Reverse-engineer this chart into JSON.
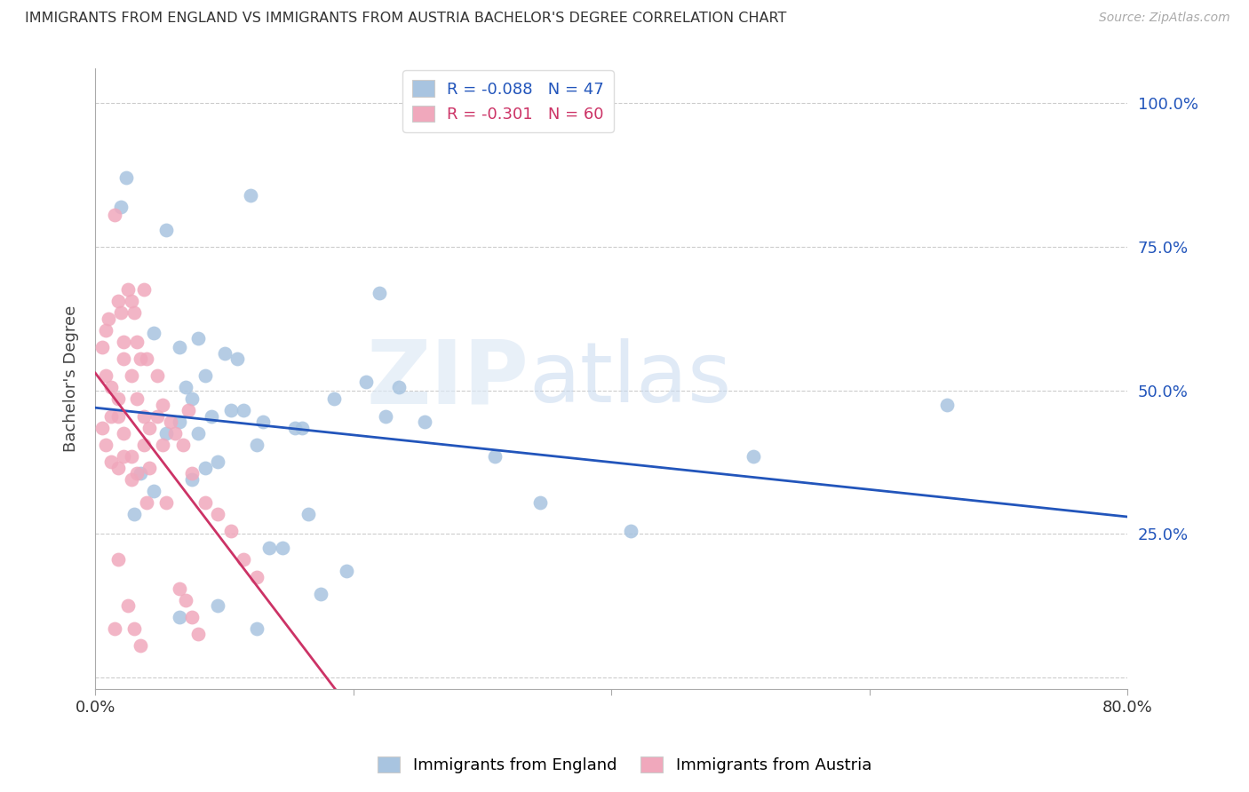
{
  "title": "IMMIGRANTS FROM ENGLAND VS IMMIGRANTS FROM AUSTRIA BACHELOR'S DEGREE CORRELATION CHART",
  "source": "Source: ZipAtlas.com",
  "ylabel": "Bachelor's Degree",
  "ytick_values": [
    0.0,
    0.25,
    0.5,
    0.75,
    1.0
  ],
  "xlim": [
    0.0,
    0.8
  ],
  "ylim": [
    -0.02,
    1.06
  ],
  "R_england": -0.088,
  "N_england": 47,
  "R_austria": -0.301,
  "N_austria": 60,
  "england_color": "#a8c4e0",
  "austria_color": "#f0a8bc",
  "england_line_color": "#2255bb",
  "austria_line_color": "#cc3366",
  "bg_color": "#ffffff",
  "watermark_zip": "ZIP",
  "watermark_atlas": "atlas",
  "england_x": [
    0.024,
    0.055,
    0.12,
    0.22,
    0.02,
    0.08,
    0.045,
    0.065,
    0.1,
    0.085,
    0.11,
    0.075,
    0.13,
    0.09,
    0.07,
    0.16,
    0.08,
    0.21,
    0.31,
    0.095,
    0.125,
    0.155,
    0.115,
    0.185,
    0.035,
    0.045,
    0.055,
    0.065,
    0.03,
    0.105,
    0.075,
    0.085,
    0.145,
    0.255,
    0.225,
    0.165,
    0.135,
    0.195,
    0.51,
    0.66,
    0.345,
    0.415,
    0.125,
    0.095,
    0.065,
    0.175,
    0.235
  ],
  "england_y": [
    0.87,
    0.78,
    0.84,
    0.67,
    0.82,
    0.59,
    0.6,
    0.575,
    0.565,
    0.525,
    0.555,
    0.485,
    0.445,
    0.455,
    0.505,
    0.435,
    0.425,
    0.515,
    0.385,
    0.375,
    0.405,
    0.435,
    0.465,
    0.485,
    0.355,
    0.325,
    0.425,
    0.445,
    0.285,
    0.465,
    0.345,
    0.365,
    0.225,
    0.445,
    0.455,
    0.285,
    0.225,
    0.185,
    0.385,
    0.475,
    0.305,
    0.255,
    0.085,
    0.125,
    0.105,
    0.145,
    0.505
  ],
  "austria_x": [
    0.005,
    0.008,
    0.01,
    0.012,
    0.015,
    0.018,
    0.02,
    0.022,
    0.025,
    0.028,
    0.03,
    0.032,
    0.035,
    0.038,
    0.04,
    0.008,
    0.012,
    0.018,
    0.022,
    0.028,
    0.032,
    0.038,
    0.042,
    0.048,
    0.052,
    0.058,
    0.062,
    0.068,
    0.072,
    0.005,
    0.008,
    0.012,
    0.018,
    0.022,
    0.028,
    0.032,
    0.038,
    0.042,
    0.048,
    0.052,
    0.018,
    0.022,
    0.028,
    0.055,
    0.075,
    0.085,
    0.095,
    0.105,
    0.115,
    0.125,
    0.065,
    0.07,
    0.075,
    0.08,
    0.03,
    0.035,
    0.04,
    0.018,
    0.025,
    0.015
  ],
  "austria_y": [
    0.575,
    0.605,
    0.625,
    0.455,
    0.805,
    0.655,
    0.635,
    0.585,
    0.675,
    0.655,
    0.635,
    0.585,
    0.555,
    0.675,
    0.555,
    0.525,
    0.505,
    0.485,
    0.555,
    0.525,
    0.485,
    0.455,
    0.435,
    0.525,
    0.475,
    0.445,
    0.425,
    0.405,
    0.465,
    0.435,
    0.405,
    0.375,
    0.455,
    0.425,
    0.385,
    0.355,
    0.405,
    0.365,
    0.455,
    0.405,
    0.365,
    0.385,
    0.345,
    0.305,
    0.355,
    0.305,
    0.285,
    0.255,
    0.205,
    0.175,
    0.155,
    0.135,
    0.105,
    0.075,
    0.085,
    0.055,
    0.305,
    0.205,
    0.125,
    0.085
  ]
}
